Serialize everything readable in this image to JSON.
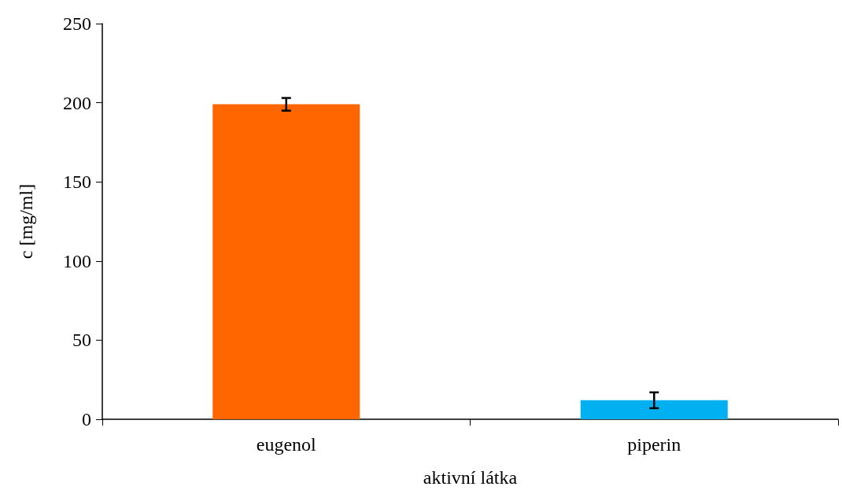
{
  "chart_data": {
    "type": "bar",
    "xlabel": "aktivní látka",
    "ylabel": "c [mg/ml]",
    "categories": [
      "eugenol",
      "piperin"
    ],
    "values": [
      199,
      12
    ],
    "colors": [
      "#ff6600",
      "#00b0f0"
    ],
    "errors": [
      4,
      5
    ],
    "ylim": [
      0,
      250
    ],
    "yticks": [
      0,
      50,
      100,
      150,
      200,
      250
    ],
    "grid": false
  }
}
